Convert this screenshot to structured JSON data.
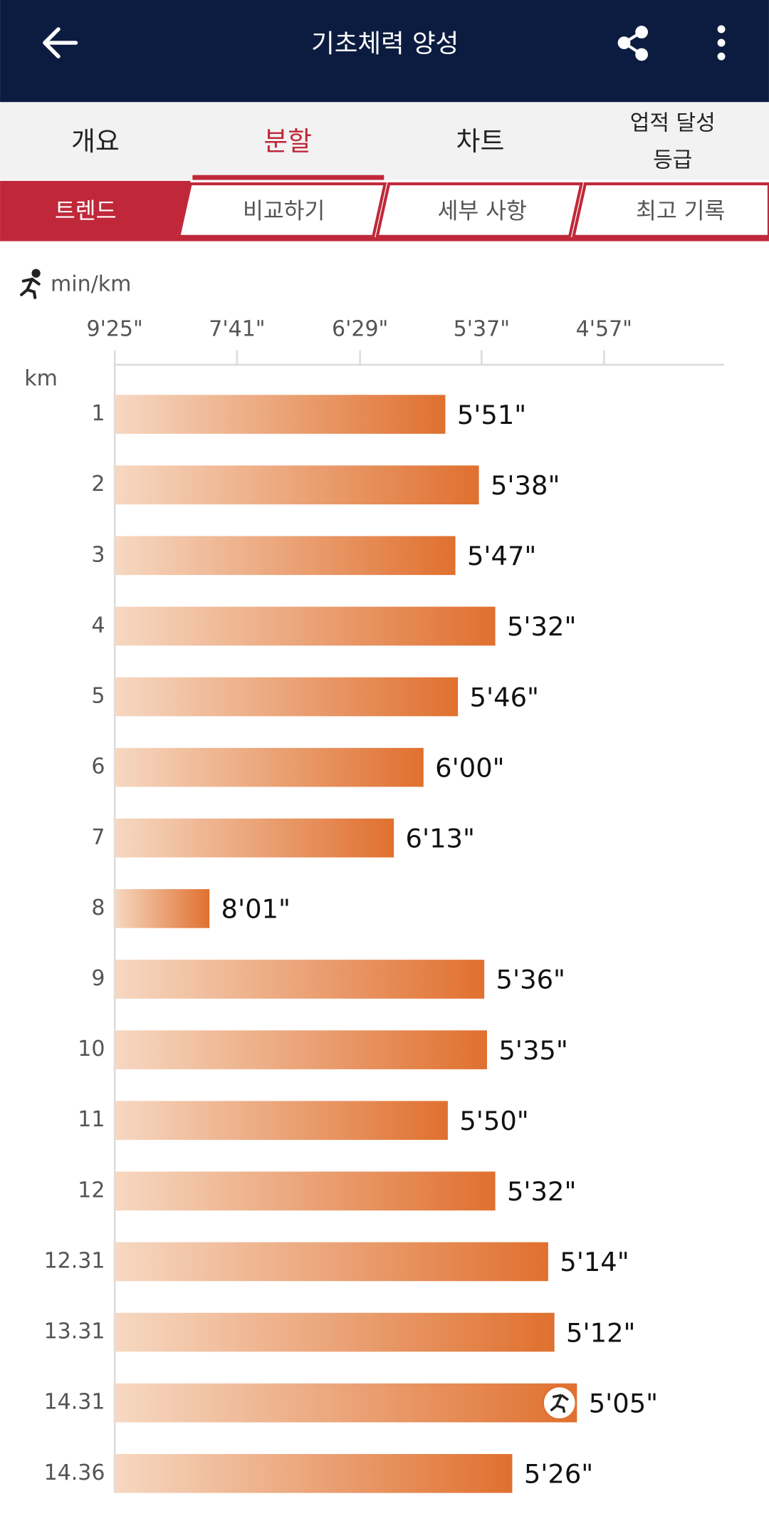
{
  "header": {
    "title": "기초체력 양성"
  },
  "tabs": [
    "개요",
    "분할",
    "차트",
    "업적 달성\n등급"
  ],
  "subtabs": [
    "트렌드",
    "비교하기",
    "세부 사항",
    "최고 기록"
  ],
  "chart_data": {
    "type": "bar",
    "orientation": "horizontal",
    "scale": "reciprocal",
    "x_label": "min/km",
    "y_label": "km",
    "categories": [
      "1",
      "2",
      "3",
      "4",
      "5",
      "6",
      "7",
      "8",
      "9",
      "10",
      "11",
      "12",
      "12.31",
      "13.31",
      "14.31",
      "14.36"
    ],
    "values": [
      351,
      338,
      347,
      332,
      346,
      360,
      373,
      481,
      336,
      335,
      350,
      332,
      314,
      312,
      305,
      326
    ],
    "value_labels": [
      "5'51\"",
      "5'38\"",
      "5'47\"",
      "5'32\"",
      "5'46\"",
      "6'00\"",
      "6'13\"",
      "8'01\"",
      "5'36\"",
      "5'35\"",
      "5'50\"",
      "5'32\"",
      "5'14\"",
      "5'12\"",
      "5'05\"",
      "5'26\""
    ],
    "xlim": [
      565,
      266
    ],
    "xticks": [
      {
        "value": 565,
        "label": "9'25\""
      },
      {
        "value": 461,
        "label": "7'41\""
      },
      {
        "value": 389,
        "label": "6'29\""
      },
      {
        "value": 337,
        "label": "5'37\""
      },
      {
        "value": 297,
        "label": "4'57\""
      }
    ],
    "color": [
      "#f6d8c2",
      "#e0702f"
    ]
  }
}
